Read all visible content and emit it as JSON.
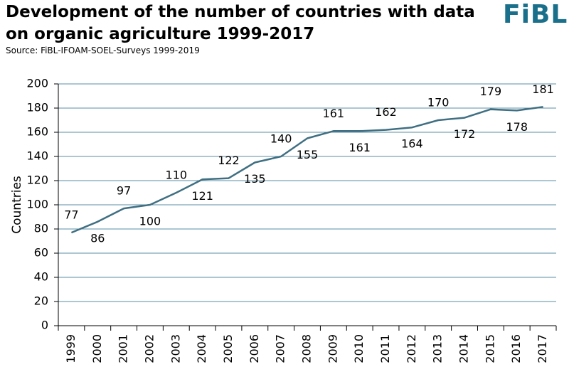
{
  "header": {
    "title_line1": "Development of the number of countries with data",
    "title_line2": "on organic agriculture 1999-2017",
    "source": "Source: FiBL-IFOAM-SOEL-Surveys 1999-2019",
    "logo": "FiBL"
  },
  "colors": {
    "line": "#3f6f82",
    "grid": "#5a8ea5",
    "logo": "#1a6f8a"
  },
  "chart_data": {
    "type": "line",
    "title": "Development of the number of countries with data on organic agriculture 1999-2017",
    "xlabel": "",
    "ylabel": "Countries",
    "ylim": [
      0,
      200
    ],
    "y_ticks": [
      0,
      20,
      40,
      60,
      80,
      100,
      120,
      140,
      160,
      180,
      200
    ],
    "grid": true,
    "legend": "none",
    "categories": [
      "1999",
      "2000",
      "2001",
      "2002",
      "2003",
      "2004",
      "2005",
      "2006",
      "2007",
      "2008",
      "2009",
      "2010",
      "2011",
      "2012",
      "2013",
      "2014",
      "2015",
      "2016",
      "2017"
    ],
    "values": [
      77,
      86,
      97,
      100,
      110,
      121,
      122,
      135,
      140,
      155,
      161,
      161,
      162,
      164,
      170,
      172,
      179,
      178,
      181
    ],
    "label_positions": [
      "above",
      "below",
      "above",
      "below",
      "above",
      "below",
      "above",
      "below",
      "above",
      "below",
      "above",
      "below",
      "above",
      "below",
      "above",
      "below",
      "above",
      "below",
      "above"
    ]
  }
}
